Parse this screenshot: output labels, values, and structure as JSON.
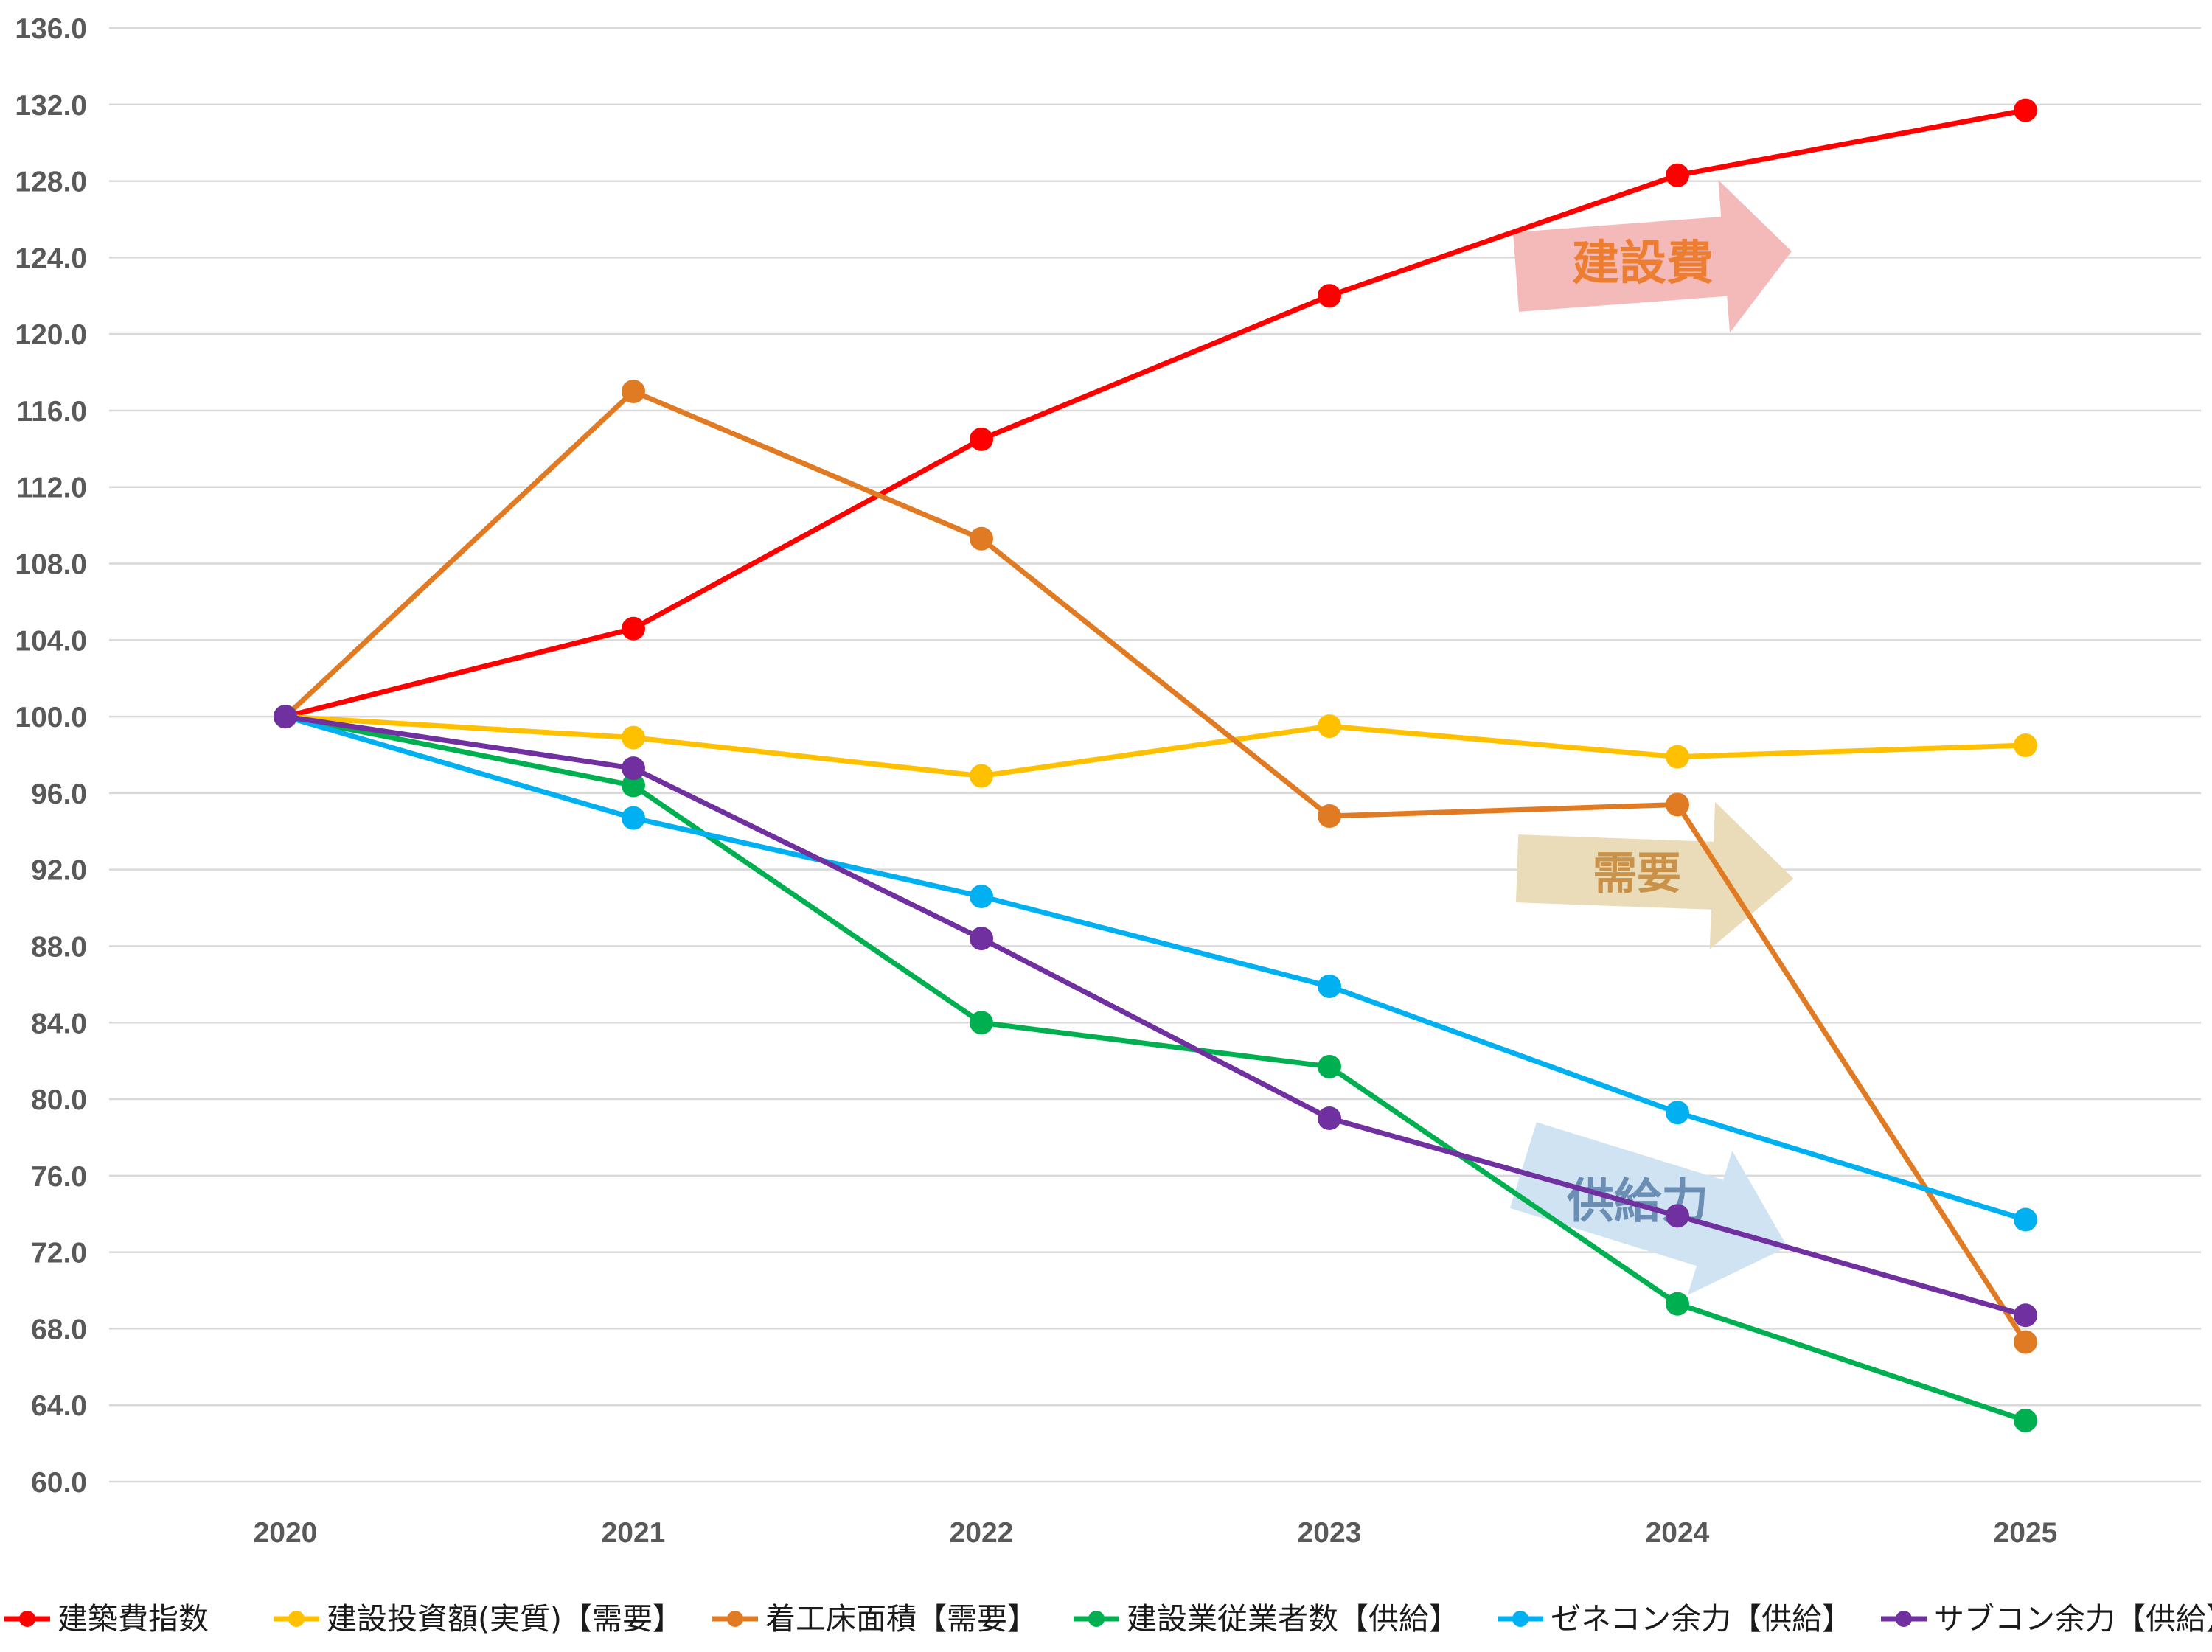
{
  "chart_data": {
    "type": "line",
    "title": "",
    "xlabel": "",
    "ylabel": "",
    "x": [
      "2020",
      "2021",
      "2022",
      "2023",
      "2024",
      "2025"
    ],
    "ylim": [
      60,
      136
    ],
    "yticks": [
      "136.0",
      "132.0",
      "128.0",
      "124.0",
      "120.0",
      "116.0",
      "112.0",
      "108.0",
      "104.0",
      "100.0",
      "96.0",
      "92.0",
      "88.0",
      "84.0",
      "80.0",
      "76.0",
      "72.0",
      "68.0",
      "64.0",
      "60.0"
    ],
    "grid": true,
    "legend_position": "bottom",
    "series": [
      {
        "name": "建築費指数",
        "color": "#ff0000",
        "values": [
          100.0,
          104.6,
          114.5,
          122.0,
          128.3,
          131.7
        ]
      },
      {
        "name": "建設投資額(実質)【需要】",
        "color": "#ffc000",
        "values": [
          100.0,
          98.9,
          96.9,
          99.5,
          97.9,
          98.5
        ]
      },
      {
        "name": "着工床面積【需要】",
        "color": "#e07b24",
        "values": [
          100.0,
          117.0,
          109.3,
          94.8,
          95.4,
          67.3
        ]
      },
      {
        "name": "建設業従業者数【供給】",
        "color": "#00b050",
        "values": [
          100.0,
          96.4,
          84.0,
          81.7,
          69.3,
          63.2
        ]
      },
      {
        "name": "ゼネコン余力【供給】",
        "color": "#00b0f0",
        "values": [
          100.0,
          94.7,
          90.6,
          85.9,
          79.3,
          73.7
        ]
      },
      {
        "name": "サブコン余力【供給】",
        "color": "#7030a0",
        "values": [
          100.0,
          97.3,
          88.4,
          79.0,
          73.9,
          68.7
        ]
      }
    ],
    "annotations": [
      {
        "text": "建設費",
        "color": "#ed7d31",
        "arrow_color": "#f4b9b9"
      },
      {
        "text": "需要",
        "color": "#c99248",
        "arrow_color": "#eadbb9"
      },
      {
        "text": "供給力",
        "color": "#6b8eb4",
        "arrow_color": "#cfe3f3"
      }
    ]
  }
}
